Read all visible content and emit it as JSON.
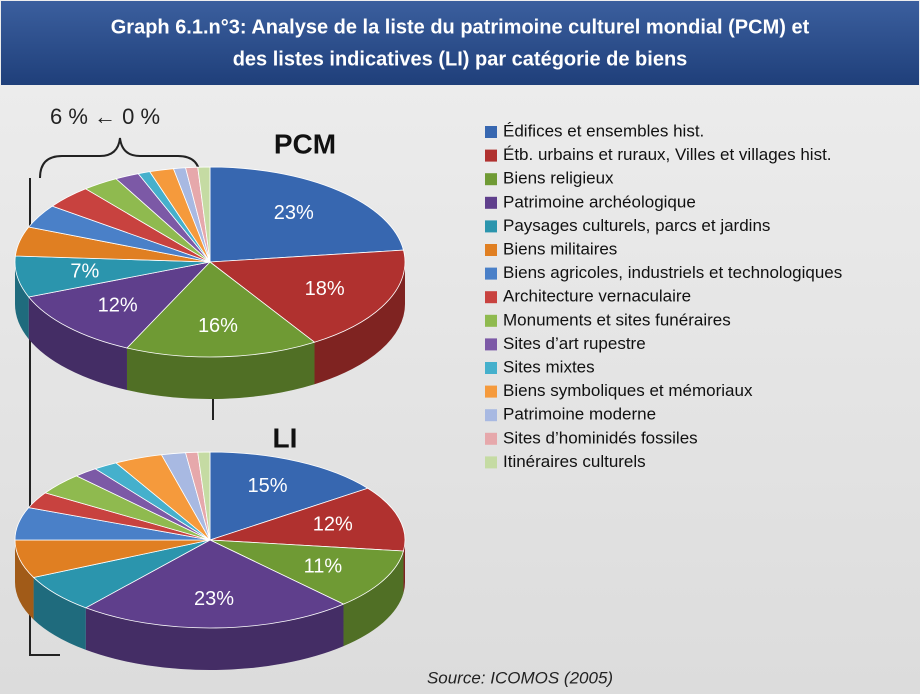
{
  "title": [
    "Graph 6.1.n°3: Analyse de la liste du patrimoine culturel mondial (PCM) et",
    "des listes indicatives (LI) par catégorie de biens"
  ],
  "annotation": "6 % ← 0 %",
  "source": "Source: ICOMOS (2005)",
  "legend": {
    "categories": [
      "Édifices et ensembles hist.",
      "Étb. urbains et ruraux, Villes et villages hist.",
      "Biens religieux",
      "Patrimoine archéologique",
      "Paysages culturels, parcs et jardins",
      "Biens militaires",
      "Biens agricoles, industriels et technologiques",
      "Architecture vernaculaire",
      "Monuments et sites funéraires",
      "Sites d’art rupestre",
      "Sites mixtes",
      "Biens symboliques et mémoriaux",
      "Patrimoine moderne",
      "Sites d’hominidés fossiles",
      "Itinéraires culturels"
    ],
    "colors": [
      "#3767b0",
      "#b0312f",
      "#6f9a34",
      "#5f3f8c",
      "#2b95ad",
      "#e07f22",
      "#4a80c8",
      "#c8423f",
      "#8fba4f",
      "#7c59a6",
      "#45b0cc",
      "#f59a3c",
      "#a8b9e2",
      "#e6a8ab",
      "#c5dba3"
    ]
  },
  "chart_data": [
    {
      "type": "pie",
      "title": "PCM",
      "values": [
        23,
        18,
        16,
        12,
        7,
        5,
        4,
        4,
        3,
        2,
        1,
        2,
        1,
        1,
        1
      ],
      "value_labels": [
        "23%",
        "18%",
        "16%",
        "12%",
        "7%",
        null,
        null,
        null,
        null,
        null,
        null,
        null,
        null,
        null,
        null
      ]
    },
    {
      "type": "pie",
      "title": "LI",
      "values": [
        15,
        12,
        11,
        23,
        7,
        7,
        6,
        3,
        4,
        2,
        2,
        4,
        2,
        1,
        1
      ],
      "value_labels": [
        "15%",
        "12%",
        "11%",
        "23%",
        null,
        null,
        null,
        null,
        null,
        null,
        null,
        null,
        null,
        null,
        null
      ]
    }
  ]
}
